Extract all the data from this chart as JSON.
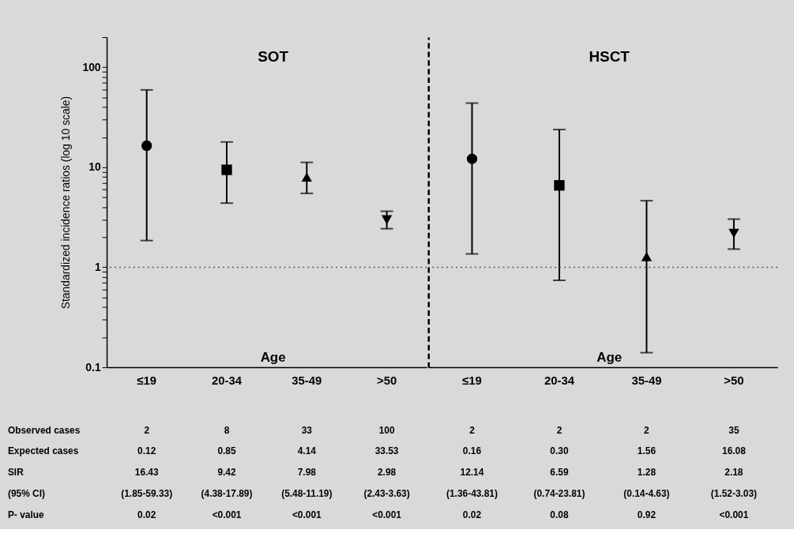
{
  "chart_data": [
    {
      "type": "scatter",
      "title": "SOT",
      "ylabel": "Standardized incidence ratios (log 10 scale)",
      "categories": [
        "≤19",
        "20-34",
        "35-49",
        ">50"
      ],
      "log": true,
      "ylim": [
        0.1,
        200
      ],
      "yticks": [
        0.1,
        {
          "value": 0.2,
          "label": null
        },
        {
          "value": 0.3,
          "label": null
        },
        {
          "value": 0.4,
          "label": null
        },
        {
          "value": 0.5,
          "label": null
        },
        {
          "value": 0.6,
          "label": null
        },
        {
          "value": 0.7,
          "label": null
        },
        {
          "value": 0.8,
          "label": null
        },
        {
          "value": 0.9,
          "label": null
        },
        1,
        {
          "value": 2,
          "label": null
        },
        {
          "value": 3,
          "label": null
        },
        {
          "value": 4,
          "label": null
        },
        {
          "value": 5,
          "label": null
        },
        {
          "value": 6,
          "label": null
        },
        {
          "value": 7,
          "label": null
        },
        {
          "value": 8,
          "label": null
        },
        {
          "value": 9,
          "label": null
        },
        10,
        {
          "value": 20,
          "label": null
        },
        {
          "value": 30,
          "label": null
        },
        {
          "value": 40,
          "label": null
        },
        {
          "value": 50,
          "label": null
        },
        {
          "value": 60,
          "label": null
        },
        {
          "value": 70,
          "label": null
        },
        {
          "value": 80,
          "label": null
        },
        {
          "value": 90,
          "label": null
        },
        100,
        {
          "value": 200,
          "label": null
        }
      ],
      "ref_lines": [
        {
          "axis": "y",
          "value": 1,
          "line_style": "dotted",
          "color": "#595959"
        }
      ],
      "annotations": [
        "Age",
        "Observed cases",
        "2",
        "8",
        "33",
        "100",
        "Expected cases",
        "0.12",
        "0.85",
        "4.14",
        "33.53",
        "SIR",
        "16.43",
        "9.42",
        "7.98",
        "2.98",
        "(95% CI)",
        "(1.85-59.33)",
        "(4.38-17.89)",
        "(5.48-11.19)",
        "(2.43-3.63)",
        "P- value",
        "0.02",
        "<0.001",
        "<0.001",
        "<0.001"
      ],
      "series": [
        {
          "color": "#000000",
          "marker": "circle",
          "x": [
            "≤19"
          ],
          "values": [
            16.43
          ],
          "errors": [
            [
              1.85,
              59.33
            ]
          ]
        },
        {
          "color": "#000000",
          "marker": "square",
          "x": [
            "20-34"
          ],
          "values": [
            9.42
          ],
          "errors": [
            [
              4.38,
              17.89
            ]
          ]
        },
        {
          "color": "#000000",
          "marker": "triangle",
          "x": [
            "35-49"
          ],
          "values": [
            7.98
          ],
          "errors": [
            [
              5.48,
              11.19
            ]
          ]
        },
        {
          "color": "#000000",
          "marker": "triangle-down",
          "x": [
            ">50"
          ],
          "values": [
            2.98
          ],
          "errors": [
            [
              2.43,
              3.63
            ]
          ]
        }
      ]
    },
    {
      "type": "scatter",
      "title": "HSCT",
      "categories": [
        "≤19",
        "20-34",
        "35-49",
        ">50"
      ],
      "log": true,
      "ylim": [
        0.1,
        200
      ],
      "yticks": [
        0.1,
        1,
        10,
        100
      ],
      "tick_labels": "x",
      "ref_lines": [
        {
          "axis": "y",
          "value": 1,
          "line_style": "dotted",
          "color": "#595959"
        }
      ],
      "annotations": [
        "Age",
        "2",
        "2",
        "2",
        "35",
        "0.16",
        "0.30",
        "1.56",
        "16.08",
        "12.14",
        "6.59",
        "1.28",
        "2.18",
        "(1.36-43.81)",
        "(0.74-23.81)",
        "(0.14-4.63)",
        "(1.52-3.03)",
        "0.02",
        "0.08",
        "0.92",
        "<0.001"
      ],
      "series": [
        {
          "color": "#000000",
          "marker": "circle",
          "x": [
            "≤19"
          ],
          "values": [
            12.14
          ],
          "errors": [
            [
              1.36,
              43.81
            ]
          ]
        },
        {
          "color": "#000000",
          "marker": "square",
          "x": [
            "20-34"
          ],
          "values": [
            6.59
          ],
          "errors": [
            [
              0.74,
              23.81
            ]
          ]
        },
        {
          "color": "#000000",
          "marker": "triangle",
          "x": [
            "35-49"
          ],
          "values": [
            1.28
          ],
          "errors": [
            [
              0.14,
              4.63
            ]
          ]
        },
        {
          "color": "#000000",
          "marker": "triangle-down",
          "x": [
            ">50"
          ],
          "values": [
            2.18
          ],
          "errors": [
            [
              1.52,
              3.03
            ]
          ]
        }
      ]
    }
  ]
}
